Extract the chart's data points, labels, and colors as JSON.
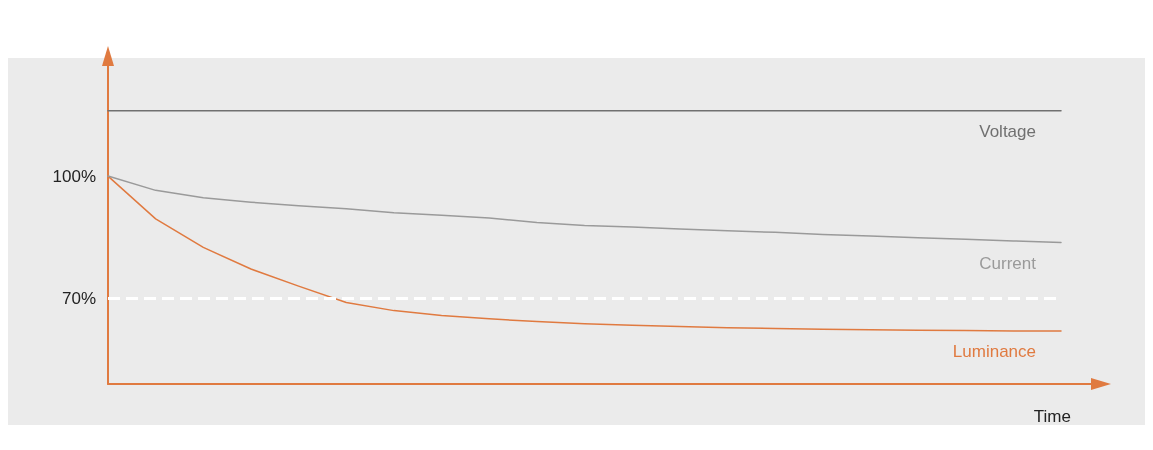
{
  "chart_data": {
    "type": "line",
    "xlabel": "Time",
    "categories": [
      null,
      null,
      null,
      null,
      null,
      null,
      null,
      null,
      null,
      null,
      null,
      null,
      null,
      null,
      null,
      null,
      null,
      null,
      null,
      null,
      null
    ],
    "ylim": [
      49,
      127
    ],
    "yticks": [
      {
        "value": 70,
        "label": "70%"
      },
      {
        "value": 100,
        "label": "100%"
      }
    ],
    "grid": false,
    "legend": false,
    "marker": "none",
    "line_style": "solid",
    "ref_lines": [
      {
        "axis": "y",
        "value": 70,
        "color": "#ffffff",
        "line_style": "dashed"
      }
    ],
    "series": [
      {
        "name": "Voltage",
        "color": "#707070",
        "values": [
          116,
          116,
          116,
          116,
          116,
          116,
          116,
          116,
          116,
          116,
          116,
          116,
          116,
          116,
          116,
          116,
          116,
          116,
          116,
          116,
          116
        ]
      },
      {
        "name": "Current",
        "color": "#9a9a9a",
        "values": [
          100,
          96.5,
          94.7,
          93.6,
          92.7,
          92,
          91,
          90.4,
          89.7,
          88.6,
          87.9,
          87.5,
          87,
          86.6,
          86.2,
          85.7,
          85.3,
          84.9,
          84.5,
          84.1,
          83.7
        ]
      },
      {
        "name": "Luminance",
        "color": "#e07a40",
        "values": [
          100,
          89.5,
          82.5,
          77.2,
          73,
          69,
          67,
          65.8,
          65,
          64.3,
          63.8,
          63.4,
          63.1,
          62.8,
          62.6,
          62.4,
          62.3,
          62.2,
          62.1,
          62,
          62
        ]
      }
    ]
  }
}
